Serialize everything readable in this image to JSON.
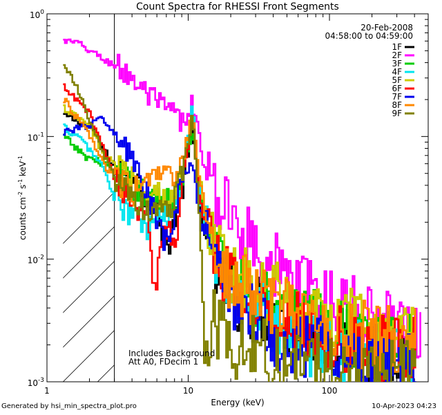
{
  "chart_data": {
    "type": "line",
    "title": "Count Spectra for RHESSI Front Segments",
    "date": "20-Feb-2008",
    "time_range": "04:58:00 to 04:59:00",
    "xlabel": "Energy (keV)",
    "ylabel_base": "counts cm",
    "ylabel_sup1": "-2",
    "ylabel_mid": " s",
    "ylabel_sup2": "-1",
    "ylabel_end": " keV",
    "ylabel_sup3": "-1",
    "xscale": "log",
    "yscale": "log",
    "xlim": [
      1,
      500
    ],
    "ylim": [
      0.001,
      1
    ],
    "x_ticks": [
      {
        "value": 1,
        "label": "1"
      },
      {
        "value": 10,
        "label": "10"
      },
      {
        "value": 100,
        "label": "100"
      }
    ],
    "y_ticks": [
      {
        "value": 1,
        "base": "10",
        "exp": "0"
      },
      {
        "value": 0.1,
        "base": "10",
        "exp": "-1"
      },
      {
        "value": 0.01,
        "base": "10",
        "exp": "-2"
      },
      {
        "value": 0.001,
        "base": "10",
        "exp": "-3"
      }
    ],
    "excluded_region": [
      1.3,
      3.0
    ],
    "annotations": [
      "Includes Background",
      "Att A0, FDecim 1"
    ],
    "legend_position": "top-right",
    "series": [
      {
        "name": "1F",
        "color": "#000000",
        "points": [
          [
            1.3,
            0.15
          ],
          [
            2,
            0.12
          ],
          [
            3,
            0.055
          ],
          [
            4,
            0.05
          ],
          [
            6,
            0.025
          ],
          [
            7,
            0.012
          ],
          [
            9,
            0.04
          ],
          [
            10.5,
            0.12
          ],
          [
            12,
            0.025
          ],
          [
            15,
            0.008
          ],
          [
            20,
            0.005
          ],
          [
            30,
            0.004
          ],
          [
            50,
            0.003
          ],
          [
            80,
            0.0025
          ],
          [
            150,
            0.002
          ],
          [
            300,
            0.0015
          ]
        ]
      },
      {
        "name": "2F",
        "color": "#ff00ff",
        "points": [
          [
            1.3,
            0.6
          ],
          [
            1.6,
            0.58
          ],
          [
            2,
            0.5
          ],
          [
            2.5,
            0.42
          ],
          [
            3,
            0.38
          ],
          [
            4,
            0.3
          ],
          [
            5,
            0.22
          ],
          [
            6,
            0.18
          ],
          [
            8,
            0.15
          ],
          [
            9,
            0.12
          ],
          [
            10,
            0.15
          ],
          [
            10.5,
            0.2
          ],
          [
            11.5,
            0.12
          ],
          [
            13,
            0.05
          ],
          [
            15,
            0.035
          ],
          [
            20,
            0.022
          ],
          [
            25,
            0.016
          ],
          [
            30,
            0.013
          ],
          [
            40,
            0.009
          ],
          [
            50,
            0.007
          ],
          [
            70,
            0.0055
          ],
          [
            100,
            0.0045
          ],
          [
            150,
            0.0038
          ],
          [
            200,
            0.0033
          ],
          [
            300,
            0.003
          ],
          [
            400,
            0.0025
          ]
        ]
      },
      {
        "name": "3F",
        "color": "#00cc00",
        "points": [
          [
            1.3,
            0.1
          ],
          [
            1.8,
            0.07
          ],
          [
            2.5,
            0.06
          ],
          [
            3,
            0.05
          ],
          [
            4,
            0.04
          ],
          [
            6,
            0.03
          ],
          [
            8,
            0.028
          ],
          [
            9,
            0.05
          ],
          [
            10.5,
            0.12
          ],
          [
            12,
            0.03
          ],
          [
            15,
            0.012
          ],
          [
            20,
            0.007
          ],
          [
            30,
            0.005
          ],
          [
            50,
            0.004
          ],
          [
            80,
            0.003
          ],
          [
            150,
            0.0025
          ],
          [
            300,
            0.002
          ]
        ]
      },
      {
        "name": "4F",
        "color": "#00e5ee",
        "points": [
          [
            1.3,
            0.12
          ],
          [
            1.8,
            0.09
          ],
          [
            2.5,
            0.055
          ],
          [
            3,
            0.03
          ],
          [
            4,
            0.022
          ],
          [
            5,
            0.018
          ],
          [
            6,
            0.02
          ],
          [
            8,
            0.025
          ],
          [
            9,
            0.05
          ],
          [
            10.5,
            0.2
          ],
          [
            12,
            0.03
          ],
          [
            15,
            0.012
          ],
          [
            20,
            0.006
          ],
          [
            30,
            0.004
          ],
          [
            50,
            0.0025
          ],
          [
            80,
            0.002
          ],
          [
            150,
            0.0018
          ],
          [
            300,
            0.0016
          ]
        ]
      },
      {
        "name": "5F",
        "color": "#cccc00",
        "points": [
          [
            1.3,
            0.17
          ],
          [
            2,
            0.12
          ],
          [
            2.5,
            0.07
          ],
          [
            3,
            0.06
          ],
          [
            4,
            0.045
          ],
          [
            6,
            0.035
          ],
          [
            8,
            0.03
          ],
          [
            9,
            0.06
          ],
          [
            10.5,
            0.15
          ],
          [
            12,
            0.04
          ],
          [
            15,
            0.014
          ],
          [
            20,
            0.008
          ],
          [
            30,
            0.006
          ],
          [
            50,
            0.0045
          ],
          [
            80,
            0.0035
          ],
          [
            150,
            0.003
          ],
          [
            300,
            0.0025
          ]
        ]
      },
      {
        "name": "6F",
        "color": "#ff0000",
        "points": [
          [
            1.3,
            0.25
          ],
          [
            2,
            0.15
          ],
          [
            2.5,
            0.08
          ],
          [
            3,
            0.045
          ],
          [
            4,
            0.03
          ],
          [
            5,
            0.02
          ],
          [
            5.8,
            0.005
          ],
          [
            6.5,
            0.02
          ],
          [
            8,
            0.015
          ],
          [
            9,
            0.04
          ],
          [
            10.5,
            0.15
          ],
          [
            12,
            0.03
          ],
          [
            15,
            0.01
          ],
          [
            20,
            0.006
          ],
          [
            30,
            0.004
          ],
          [
            50,
            0.003
          ],
          [
            80,
            0.0025
          ],
          [
            150,
            0.002
          ],
          [
            300,
            0.0018
          ]
        ]
      },
      {
        "name": "7F",
        "color": "#0000ee",
        "points": [
          [
            1.3,
            0.11
          ],
          [
            1.8,
            0.12
          ],
          [
            2.5,
            0.14
          ],
          [
            3,
            0.1
          ],
          [
            4,
            0.065
          ],
          [
            5,
            0.035
          ],
          [
            6,
            0.018
          ],
          [
            7,
            0.013
          ],
          [
            8,
            0.022
          ],
          [
            9,
            0.05
          ],
          [
            10.5,
            0.06
          ],
          [
            12,
            0.02
          ],
          [
            15,
            0.008
          ],
          [
            20,
            0.005
          ],
          [
            30,
            0.0035
          ],
          [
            50,
            0.002
          ],
          [
            80,
            0.002
          ],
          [
            150,
            0.0018
          ],
          [
            300,
            0.0015
          ]
        ]
      },
      {
        "name": "8F",
        "color": "#ff8800",
        "points": [
          [
            1.3,
            0.2
          ],
          [
            2,
            0.1
          ],
          [
            2.5,
            0.06
          ],
          [
            3,
            0.045
          ],
          [
            4,
            0.035
          ],
          [
            5,
            0.04
          ],
          [
            6,
            0.05
          ],
          [
            7,
            0.045
          ],
          [
            8,
            0.045
          ],
          [
            9,
            0.06
          ],
          [
            10.5,
            0.15
          ],
          [
            12,
            0.04
          ],
          [
            15,
            0.012
          ],
          [
            20,
            0.007
          ],
          [
            30,
            0.005
          ],
          [
            50,
            0.004
          ],
          [
            80,
            0.003
          ],
          [
            150,
            0.0025
          ],
          [
            300,
            0.0022
          ]
        ]
      },
      {
        "name": "9F",
        "color": "#808000",
        "points": [
          [
            1.3,
            0.4
          ],
          [
            1.6,
            0.25
          ],
          [
            2,
            0.13
          ],
          [
            2.5,
            0.07
          ],
          [
            3,
            0.045
          ],
          [
            4,
            0.03
          ],
          [
            5,
            0.025
          ],
          [
            6,
            0.025
          ],
          [
            8,
            0.03
          ],
          [
            9,
            0.05
          ],
          [
            10.5,
            0.15
          ],
          [
            12,
            0.02
          ],
          [
            13,
            0.0012
          ],
          [
            15,
            0.003
          ],
          [
            20,
            0.002
          ],
          [
            30,
            0.0018
          ],
          [
            50,
            0.0015
          ],
          [
            80,
            0.0015
          ],
          [
            150,
            0.0012
          ],
          [
            300,
            0.0012
          ]
        ]
      }
    ]
  },
  "footer": {
    "left": "Generated by hsi_min_spectra_plot.pro",
    "right": "10-Apr-2023 04:23"
  }
}
